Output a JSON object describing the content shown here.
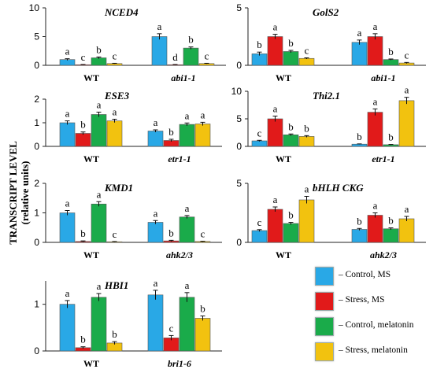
{
  "y_axis_label": {
    "line1": "TRANSCRIPT LEVEL",
    "line2": "(relative units)"
  },
  "legend": [
    {
      "label": "– Control, MS",
      "color": "#29a8e6"
    },
    {
      "label": "– Stress, MS",
      "color": "#e11a1a"
    },
    {
      "label": "– Control, melatonin",
      "color": "#1aab4a"
    },
    {
      "label": "– Stress, melatonin",
      "color": "#f2c20f"
    }
  ],
  "chart_data": [
    {
      "type": "bar",
      "title": "NCED4",
      "categories": [
        "WT",
        "abi1-1"
      ],
      "ylim": [
        0,
        10
      ],
      "yticks": [
        0,
        5,
        10
      ],
      "series": [
        {
          "values": [
            1.0,
            5.0
          ],
          "errors": [
            0.15,
            0.5
          ],
          "letters": [
            "a",
            "a"
          ]
        },
        {
          "values": [
            0.1,
            0.1
          ],
          "errors": [
            0.05,
            0.05
          ],
          "letters": [
            "c",
            "d"
          ]
        },
        {
          "values": [
            1.3,
            3.0
          ],
          "errors": [
            0.15,
            0.2
          ],
          "letters": [
            "b",
            "b"
          ]
        },
        {
          "values": [
            0.3,
            0.3
          ],
          "errors": [
            0.05,
            0.05
          ],
          "letters": [
            "c",
            "c"
          ]
        }
      ]
    },
    {
      "type": "bar",
      "title": "GolS2",
      "categories": [
        "WT",
        "abi1-1"
      ],
      "ylim": [
        0,
        5
      ],
      "yticks": [
        0,
        5
      ],
      "series": [
        {
          "values": [
            1.0,
            2.0
          ],
          "errors": [
            0.15,
            0.2
          ],
          "letters": [
            "b",
            "a"
          ]
        },
        {
          "values": [
            2.5,
            2.5
          ],
          "errors": [
            0.2,
            0.25
          ],
          "letters": [
            "a",
            "a"
          ]
        },
        {
          "values": [
            1.2,
            0.5
          ],
          "errors": [
            0.1,
            0.05
          ],
          "letters": [
            "b",
            "b"
          ]
        },
        {
          "values": [
            0.6,
            0.2
          ],
          "errors": [
            0.05,
            0.05
          ],
          "letters": [
            "c",
            "c"
          ]
        }
      ]
    },
    {
      "type": "bar",
      "title": "ESE3",
      "categories": [
        "WT",
        "etr1-1"
      ],
      "ylim": [
        0,
        2
      ],
      "yticks": [
        0,
        1,
        2
      ],
      "series": [
        {
          "values": [
            1.0,
            0.65
          ],
          "errors": [
            0.08,
            0.05
          ],
          "letters": [
            "a",
            "a"
          ]
        },
        {
          "values": [
            0.55,
            0.25
          ],
          "errors": [
            0.06,
            0.05
          ],
          "letters": [
            "b",
            "b"
          ]
        },
        {
          "values": [
            1.35,
            0.93
          ],
          "errors": [
            0.1,
            0.06
          ],
          "letters": [
            "a",
            "a"
          ]
        },
        {
          "values": [
            1.08,
            0.95
          ],
          "errors": [
            0.07,
            0.07
          ],
          "letters": [
            "a",
            "a"
          ]
        }
      ]
    },
    {
      "type": "bar",
      "title": "Thi2.1",
      "categories": [
        "WT",
        "etr1-1"
      ],
      "ylim": [
        0,
        10
      ],
      "yticks": [
        0,
        5,
        10
      ],
      "series": [
        {
          "values": [
            1.0,
            0.4
          ],
          "errors": [
            0.1,
            0.05
          ],
          "letters": [
            "c",
            "b"
          ]
        },
        {
          "values": [
            5.0,
            6.2
          ],
          "errors": [
            0.5,
            0.6
          ],
          "letters": [
            "a",
            "a"
          ]
        },
        {
          "values": [
            2.1,
            0.3
          ],
          "errors": [
            0.15,
            0.05
          ],
          "letters": [
            "b",
            "b"
          ]
        },
        {
          "values": [
            1.8,
            8.3
          ],
          "errors": [
            0.15,
            0.6
          ],
          "letters": [
            "b",
            "a"
          ]
        }
      ]
    },
    {
      "type": "bar",
      "title": "KMD1",
      "categories": [
        "WT",
        "ahk2/3"
      ],
      "ylim": [
        0,
        2
      ],
      "yticks": [
        0,
        1,
        2
      ],
      "series": [
        {
          "values": [
            1.0,
            0.68
          ],
          "errors": [
            0.08,
            0.06
          ],
          "letters": [
            "a",
            "a"
          ]
        },
        {
          "values": [
            0.03,
            0.05
          ],
          "errors": [
            0.02,
            0.02
          ],
          "letters": [
            "b",
            "b"
          ]
        },
        {
          "values": [
            1.3,
            0.86
          ],
          "errors": [
            0.08,
            0.05
          ],
          "letters": [
            "a",
            "a"
          ]
        },
        {
          "values": [
            0.02,
            0.03
          ],
          "errors": [
            0.01,
            0.01
          ],
          "letters": [
            "c",
            "c"
          ]
        }
      ]
    },
    {
      "type": "bar",
      "title": "bHLH CKG",
      "categories": [
        "WT",
        "ahk2/3"
      ],
      "ylim": [
        0,
        5
      ],
      "yticks": [
        0,
        5
      ],
      "series": [
        {
          "values": [
            1.0,
            1.1
          ],
          "errors": [
            0.08,
            0.08
          ],
          "letters": [
            "c",
            "b"
          ]
        },
        {
          "values": [
            2.8,
            2.3
          ],
          "errors": [
            0.2,
            0.2
          ],
          "letters": [
            "a",
            "a"
          ]
        },
        {
          "values": [
            1.6,
            1.15
          ],
          "errors": [
            0.1,
            0.08
          ],
          "letters": [
            "b",
            "b"
          ]
        },
        {
          "values": [
            3.6,
            2.0
          ],
          "errors": [
            0.3,
            0.2
          ],
          "letters": [
            "a",
            "a"
          ]
        }
      ]
    },
    {
      "type": "bar",
      "title": "HBI1",
      "categories": [
        "WT",
        "bri1-6"
      ],
      "ylim": [
        0,
        1.5
      ],
      "yticks": [
        0,
        1
      ],
      "series": [
        {
          "values": [
            1.0,
            1.2
          ],
          "errors": [
            0.08,
            0.1
          ],
          "letters": [
            "a",
            "a"
          ]
        },
        {
          "values": [
            0.07,
            0.28
          ],
          "errors": [
            0.02,
            0.05
          ],
          "letters": [
            "b",
            "c"
          ]
        },
        {
          "values": [
            1.15,
            1.15
          ],
          "errors": [
            0.08,
            0.1
          ],
          "letters": [
            "a",
            "a"
          ]
        },
        {
          "values": [
            0.17,
            0.7
          ],
          "errors": [
            0.03,
            0.05
          ],
          "letters": [
            "b",
            "b"
          ]
        }
      ]
    }
  ]
}
